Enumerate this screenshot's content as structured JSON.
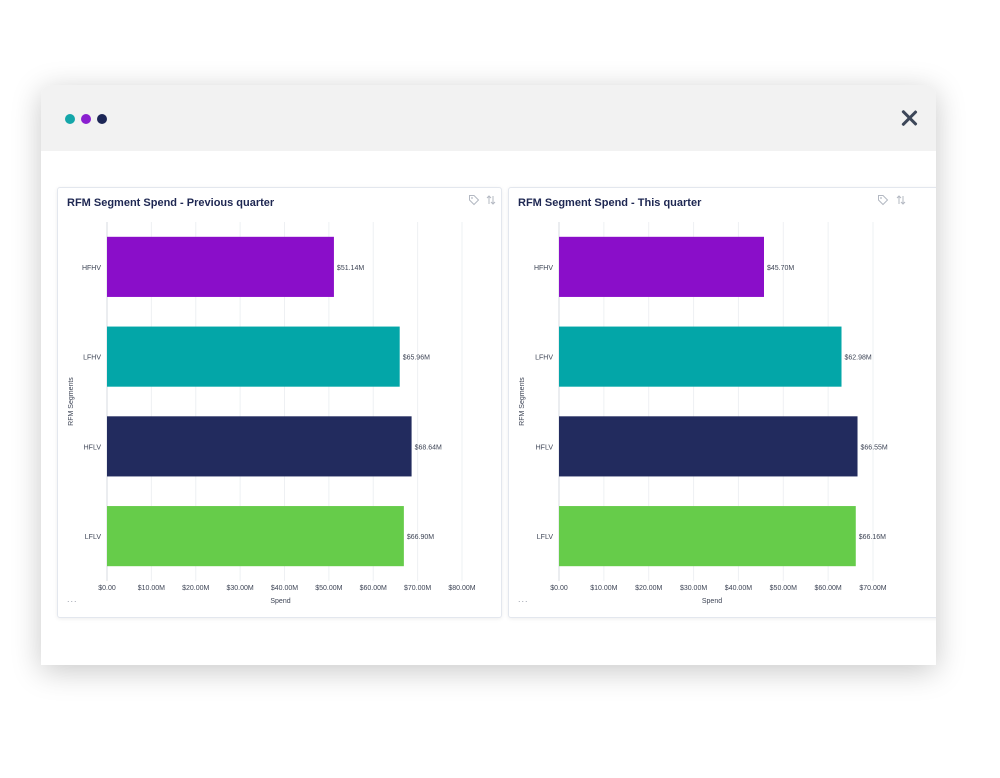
{
  "window": {
    "dots": [
      {
        "name": "teal-dot",
        "color": "#14a6a9"
      },
      {
        "name": "purple-dot",
        "color": "#8a1fd0"
      },
      {
        "name": "navy-dot",
        "color": "#1c2656"
      }
    ],
    "close_icon": "close-icon"
  },
  "panels": [
    {
      "title": "RFM Segment Spend - Previous quarter",
      "more": "...",
      "tag_icon": "tag-icon",
      "sort_icon": "sort-icon"
    },
    {
      "title": "RFM Segment Spend - This quarter",
      "more": "...",
      "tag_icon": "tag-icon",
      "sort_icon": "sort-icon"
    }
  ],
  "chart_data": [
    {
      "type": "bar",
      "orientation": "horizontal",
      "title": "RFM Segment Spend - Previous quarter",
      "xlabel": "Spend",
      "ylabel": "RFM Segments",
      "categories": [
        "HFHV",
        "LFHV",
        "HFLV",
        "LFLV"
      ],
      "values": [
        51.14,
        65.96,
        68.64,
        66.9
      ],
      "data_labels": [
        "$51.14M",
        "$65.96M",
        "$68.64M",
        "$66.90M"
      ],
      "colors": [
        "#8a0ec9",
        "#03a6a8",
        "#222b5e",
        "#66cc4a"
      ],
      "xlim": [
        0,
        80
      ],
      "xticks": [
        0,
        10,
        20,
        30,
        40,
        50,
        60,
        70,
        80
      ],
      "xtick_labels": [
        "$0.00",
        "$10.00M",
        "$20.00M",
        "$30.00M",
        "$40.00M",
        "$50.00M",
        "$60.00M",
        "$70.00M",
        "$80.00M"
      ],
      "grid": true
    },
    {
      "type": "bar",
      "orientation": "horizontal",
      "title": "RFM Segment Spend - This quarter",
      "xlabel": "Spend",
      "ylabel": "RFM Segments",
      "categories": [
        "HFHV",
        "LFHV",
        "HFLV",
        "LFLV"
      ],
      "values": [
        45.7,
        62.98,
        66.55,
        66.16
      ],
      "data_labels": [
        "$45.70M",
        "$62.98M",
        "$66.55M",
        "$66.16M"
      ],
      "colors": [
        "#8a0ec9",
        "#03a6a8",
        "#222b5e",
        "#66cc4a"
      ],
      "xlim": [
        0,
        70
      ],
      "xticks": [
        0,
        10,
        20,
        30,
        40,
        50,
        60,
        70
      ],
      "xtick_labels": [
        "$0.00",
        "$10.00M",
        "$20.00M",
        "$30.00M",
        "$40.00M",
        "$50.00M",
        "$60.00M",
        "$70.00M"
      ],
      "grid": true
    }
  ]
}
